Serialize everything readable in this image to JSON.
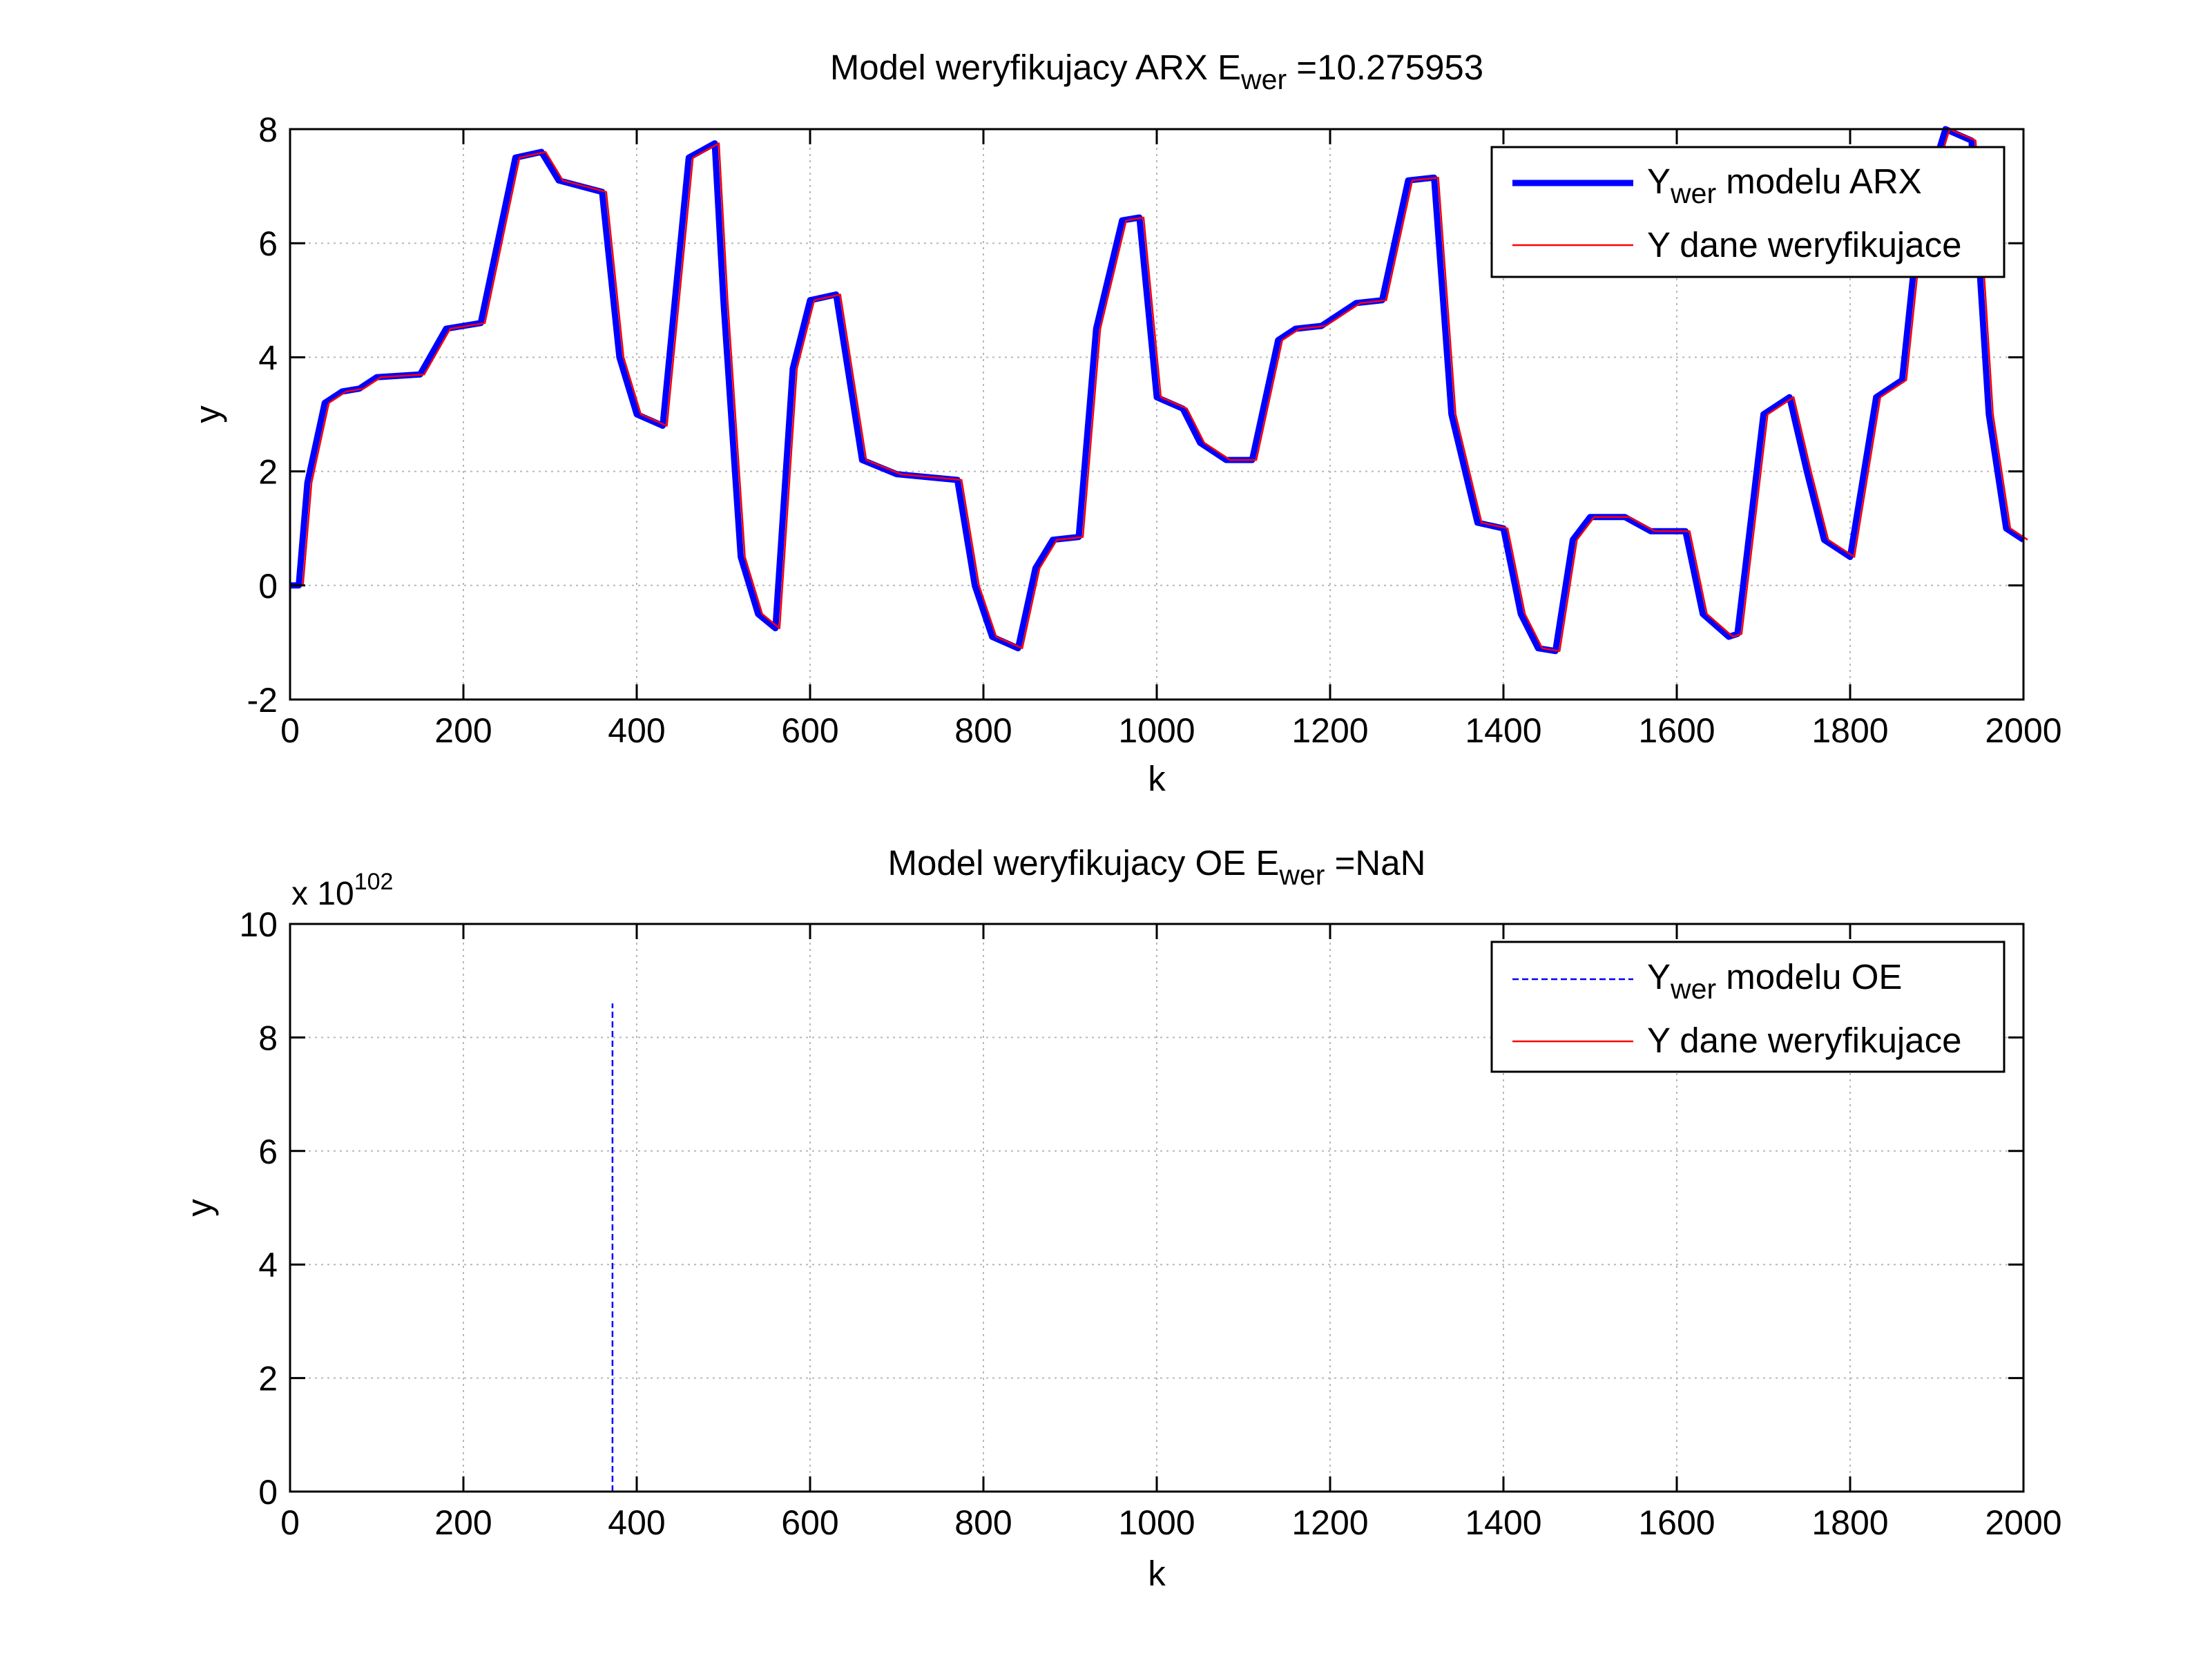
{
  "chart_data": [
    {
      "type": "line",
      "title": {
        "prefix": "Model weryfikujacy ARX E",
        "sub": "wer",
        "suffix": " =10.275953"
      },
      "xlabel": "k",
      "ylabel": "y",
      "xlim": [
        0,
        2000
      ],
      "ylim": [
        -2,
        8
      ],
      "xticks": [
        0,
        200,
        400,
        600,
        800,
        1000,
        1200,
        1400,
        1600,
        1800,
        2000
      ],
      "yticks": [
        -2,
        0,
        2,
        4,
        6,
        8
      ],
      "xtick_labels": [
        "0",
        "200",
        "400",
        "600",
        "800",
        "1000",
        "1200",
        "1400",
        "1600",
        "1800",
        "2000"
      ],
      "ytick_labels": [
        "-2",
        "0",
        "2",
        "4",
        "6",
        "8"
      ],
      "grid": true,
      "legend_position": "top-right",
      "series": [
        {
          "name": {
            "prefix": "Y",
            "sub": "wer",
            "suffix": " modelu ARX"
          },
          "color": "#0000ff",
          "style": "solid-thick",
          "x": [
            0,
            10,
            20,
            40,
            60,
            80,
            100,
            150,
            180,
            220,
            260,
            290,
            310,
            360,
            380,
            400,
            430,
            460,
            490,
            500,
            520,
            540,
            560,
            580,
            600,
            630,
            660,
            700,
            770,
            790,
            810,
            840,
            860,
            880,
            910,
            930,
            960,
            980,
            1000,
            1030,
            1050,
            1080,
            1110,
            1140,
            1160,
            1190,
            1230,
            1260,
            1290,
            1320,
            1340,
            1370,
            1400,
            1420,
            1440,
            1460,
            1480,
            1500,
            1540,
            1570,
            1610,
            1630,
            1660,
            1670,
            1700,
            1730,
            1750,
            1770,
            1800,
            1830,
            1860,
            1880,
            1910,
            1940,
            1960,
            1980,
            2000
          ],
          "y": [
            0,
            0,
            1.8,
            3.2,
            3.4,
            3.45,
            3.65,
            3.7,
            4.5,
            4.6,
            7.5,
            7.6,
            7.1,
            6.9,
            4.0,
            3.0,
            2.8,
            7.5,
            7.75,
            5.0,
            0.5,
            -0.5,
            -0.75,
            3.8,
            5.0,
            5.1,
            2.2,
            1.95,
            1.85,
            0.0,
            -0.9,
            -1.1,
            0.3,
            0.8,
            0.85,
            4.5,
            6.4,
            6.45,
            3.3,
            3.1,
            2.5,
            2.2,
            2.2,
            4.3,
            4.5,
            4.55,
            4.95,
            5.0,
            7.1,
            7.15,
            3.0,
            1.1,
            1.0,
            -0.5,
            -1.1,
            -1.15,
            0.8,
            1.2,
            1.2,
            0.95,
            0.95,
            -0.5,
            -0.9,
            -0.85,
            3.0,
            3.3,
            2.0,
            0.8,
            0.5,
            3.3,
            3.6,
            6.5,
            8.0,
            7.8,
            3.0,
            1.0,
            0.8
          ]
        },
        {
          "name": {
            "prefix": "Y dane weryfikujace",
            "sub": "",
            "suffix": ""
          },
          "color": "#ff0000",
          "style": "solid-thin",
          "x": [
            0,
            10,
            20,
            40,
            60,
            80,
            100,
            150,
            180,
            220,
            260,
            290,
            310,
            360,
            380,
            400,
            430,
            460,
            490,
            500,
            520,
            540,
            560,
            580,
            600,
            630,
            660,
            700,
            770,
            790,
            810,
            840,
            860,
            880,
            910,
            930,
            960,
            980,
            1000,
            1030,
            1050,
            1080,
            1110,
            1140,
            1160,
            1190,
            1230,
            1260,
            1290,
            1320,
            1340,
            1370,
            1400,
            1420,
            1440,
            1460,
            1480,
            1500,
            1540,
            1570,
            1610,
            1630,
            1660,
            1670,
            1700,
            1730,
            1750,
            1770,
            1800,
            1830,
            1860,
            1880,
            1910,
            1940,
            1960,
            1980,
            2000
          ],
          "y": [
            0,
            0,
            1.8,
            3.2,
            3.4,
            3.45,
            3.65,
            3.7,
            4.5,
            4.6,
            7.5,
            7.6,
            7.1,
            6.9,
            4.0,
            3.0,
            2.8,
            7.5,
            7.75,
            5.0,
            0.5,
            -0.5,
            -0.75,
            3.8,
            5.0,
            5.1,
            2.2,
            1.95,
            1.85,
            0.0,
            -0.9,
            -1.1,
            0.3,
            0.8,
            0.85,
            4.5,
            6.4,
            6.45,
            3.3,
            3.1,
            2.5,
            2.2,
            2.2,
            4.3,
            4.5,
            4.55,
            4.95,
            5.0,
            7.1,
            7.15,
            3.0,
            1.1,
            1.0,
            -0.5,
            -1.1,
            -1.15,
            0.8,
            1.2,
            1.2,
            0.95,
            0.95,
            -0.5,
            -0.9,
            -0.85,
            3.0,
            3.3,
            2.0,
            0.8,
            0.5,
            3.3,
            3.6,
            6.5,
            8.0,
            7.8,
            3.0,
            1.0,
            0.8
          ]
        }
      ]
    },
    {
      "type": "line",
      "title": {
        "prefix": "Model weryfikujacy OE E",
        "sub": "wer",
        "suffix": " =NaN"
      },
      "xlabel": "k",
      "ylabel": "y",
      "xlim": [
        0,
        2000
      ],
      "ylim": [
        0,
        10
      ],
      "y_multiplier": {
        "base": "x 10",
        "exponent": "102"
      },
      "xticks": [
        0,
        200,
        400,
        600,
        800,
        1000,
        1200,
        1400,
        1600,
        1800,
        2000
      ],
      "yticks": [
        0,
        2,
        4,
        6,
        8,
        10
      ],
      "xtick_labels": [
        "0",
        "200",
        "400",
        "600",
        "800",
        "1000",
        "1200",
        "1400",
        "1600",
        "1800",
        "2000"
      ],
      "ytick_labels": [
        "0",
        "2",
        "4",
        "6",
        "8",
        "10"
      ],
      "grid": true,
      "legend_position": "top-right",
      "series": [
        {
          "name": {
            "prefix": "Y",
            "sub": "wer",
            "suffix": " modelu OE"
          },
          "color": "#0000ff",
          "style": "dashed",
          "x": [
            372,
            372
          ],
          "y": [
            0,
            8.6
          ]
        },
        {
          "name": {
            "prefix": "Y dane weryfikujace",
            "sub": "",
            "suffix": ""
          },
          "color": "#ff0000",
          "style": "solid-thin",
          "x": [],
          "y": []
        }
      ]
    }
  ]
}
